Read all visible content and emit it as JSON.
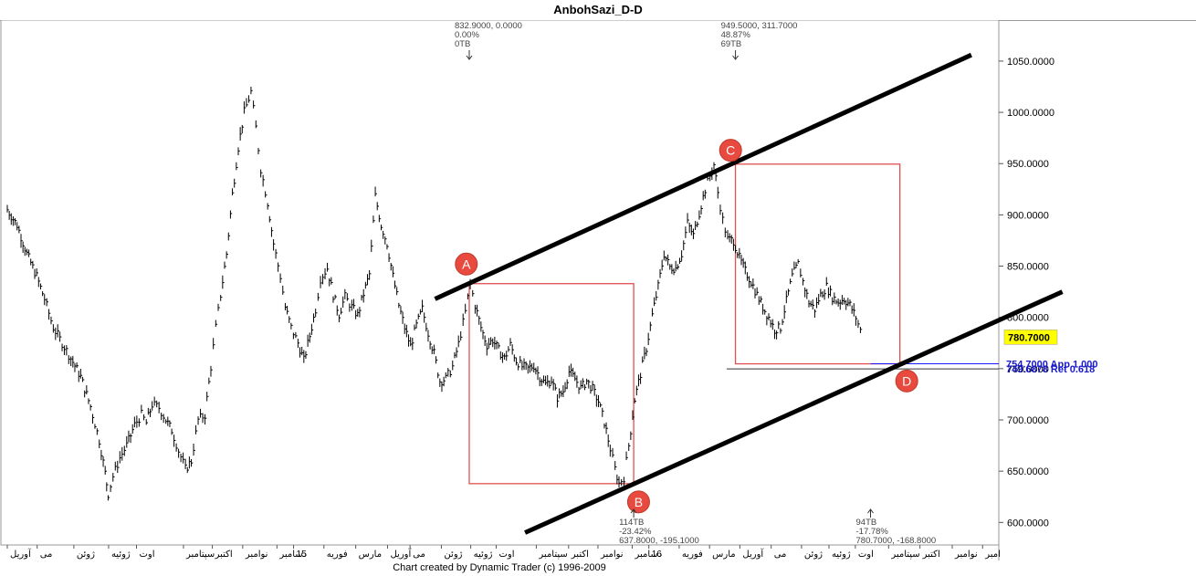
{
  "window": {
    "title": "AnbohSazi_D-D"
  },
  "footer": {
    "credit": "Chart created by Dynamic Trader  (c)  1996-2009"
  },
  "chart_data": {
    "type": "line",
    "style": "ohlc-bars",
    "title": "AnbohSazi_D-D",
    "ylim": [
      578,
      1090
    ],
    "y_ticks": [
      "1050.0000",
      "1000.0000",
      "950.0000",
      "900.0000",
      "850.0000",
      "800.0000",
      "750.0000",
      "700.0000",
      "650.0000",
      "600.0000"
    ],
    "y_tick_values": [
      1050,
      1000,
      950,
      900,
      850,
      800,
      750,
      700,
      650,
      600
    ],
    "last_price": "780.7000",
    "last_price_value": 780.7,
    "x_labels": [
      "آوریل",
      "می",
      "ژوئن",
      "ژوئیه",
      "اوت",
      "سپتامبر",
      "اکتبر",
      "نوامبر",
      "دسامبر",
      "15",
      "فوریه",
      "مارس",
      "آوریل",
      "می",
      "ژوئن",
      "ژوئیه",
      "اوت",
      "سپتامبر",
      "اکتبر",
      "نوامبر",
      "دسامبر",
      "16",
      "فوریه",
      "مارس",
      "آوریل",
      "می",
      "ژوئن",
      "ژوئیه",
      "اوت",
      "سپتامبر",
      "اکتبر",
      "نوامبر",
      "امبر"
    ],
    "x_label_pos": [
      0,
      0.0305,
      0.068,
      0.1035,
      0.132,
      0.18,
      0.2095,
      0.2405,
      0.2755,
      0.2925,
      0.3235,
      0.356,
      0.3885,
      0.4115,
      0.4435,
      0.4735,
      0.4995,
      0.5405,
      0.5735,
      0.6035,
      0.6385,
      0.6555,
      0.6865,
      0.7175,
      0.7485,
      0.7805,
      0.8115,
      0.8395,
      0.8665,
      0.9005,
      0.9325,
      0.9655,
      0.9965
    ],
    "price_path": [
      [
        0,
        905
      ],
      [
        0.01,
        890
      ],
      [
        0.02,
        862
      ],
      [
        0.03,
        840
      ],
      [
        0.038,
        818
      ],
      [
        0.047,
        790
      ],
      [
        0.056,
        775
      ],
      [
        0.065,
        760
      ],
      [
        0.075,
        742
      ],
      [
        0.085,
        713
      ],
      [
        0.094,
        680
      ],
      [
        0.1,
        648
      ],
      [
        0.103,
        628
      ],
      [
        0.108,
        645
      ],
      [
        0.115,
        663
      ],
      [
        0.122,
        675
      ],
      [
        0.13,
        695
      ],
      [
        0.137,
        705
      ],
      [
        0.142,
        697
      ],
      [
        0.148,
        715
      ],
      [
        0.155,
        712
      ],
      [
        0.162,
        700
      ],
      [
        0.168,
        690
      ],
      [
        0.175,
        670
      ],
      [
        0.182,
        652
      ],
      [
        0.188,
        660
      ],
      [
        0.195,
        700
      ],
      [
        0.202,
        705
      ],
      [
        0.208,
        752
      ],
      [
        0.213,
        790
      ],
      [
        0.218,
        822
      ],
      [
        0.224,
        862
      ],
      [
        0.23,
        920
      ],
      [
        0.236,
        966
      ],
      [
        0.242,
        1000
      ],
      [
        0.249,
        1020
      ],
      [
        0.254,
        985
      ],
      [
        0.259,
        945
      ],
      [
        0.266,
        912
      ],
      [
        0.272,
        872
      ],
      [
        0.279,
        840
      ],
      [
        0.284,
        810
      ],
      [
        0.29,
        790
      ],
      [
        0.297,
        775
      ],
      [
        0.303,
        758
      ],
      [
        0.309,
        782
      ],
      [
        0.315,
        808
      ],
      [
        0.32,
        838
      ],
      [
        0.327,
        848
      ],
      [
        0.333,
        822
      ],
      [
        0.339,
        803
      ],
      [
        0.345,
        820
      ],
      [
        0.352,
        810
      ],
      [
        0.358,
        802
      ],
      [
        0.364,
        823
      ],
      [
        0.37,
        842
      ],
      [
        0.376,
        918
      ],
      [
        0.382,
        890
      ],
      [
        0.388,
        872
      ],
      [
        0.394,
        840
      ],
      [
        0.4,
        812
      ],
      [
        0.406,
        790
      ],
      [
        0.412,
        772
      ],
      [
        0.418,
        792
      ],
      [
        0.424,
        808
      ],
      [
        0.43,
        785
      ],
      [
        0.436,
        765
      ],
      [
        0.442,
        738
      ],
      [
        0.448,
        740
      ],
      [
        0.455,
        752
      ],
      [
        0.461,
        774
      ],
      [
        0.468,
        805
      ],
      [
        0.473,
        833
      ],
      [
        0.478,
        812
      ],
      [
        0.484,
        790
      ],
      [
        0.49,
        773
      ],
      [
        0.496,
        778
      ],
      [
        0.502,
        768
      ],
      [
        0.508,
        760
      ],
      [
        0.514,
        773
      ],
      [
        0.52,
        758
      ],
      [
        0.526,
        752
      ],
      [
        0.532,
        750
      ],
      [
        0.538,
        753
      ],
      [
        0.544,
        742
      ],
      [
        0.55,
        735
      ],
      [
        0.556,
        739
      ],
      [
        0.562,
        722
      ],
      [
        0.568,
        728
      ],
      [
        0.574,
        747
      ],
      [
        0.58,
        740
      ],
      [
        0.586,
        731
      ],
      [
        0.592,
        738
      ],
      [
        0.598,
        730
      ],
      [
        0.604,
        718
      ],
      [
        0.61,
        698
      ],
      [
        0.616,
        672
      ],
      [
        0.621,
        652
      ],
      [
        0.625,
        638
      ],
      [
        0.63,
        644
      ],
      [
        0.635,
        675
      ],
      [
        0.641,
        720
      ],
      [
        0.647,
        745
      ],
      [
        0.653,
        770
      ],
      [
        0.659,
        802
      ],
      [
        0.665,
        830
      ],
      [
        0.671,
        862
      ],
      [
        0.677,
        849
      ],
      [
        0.683,
        848
      ],
      [
        0.689,
        862
      ],
      [
        0.695,
        892
      ],
      [
        0.701,
        880
      ],
      [
        0.707,
        902
      ],
      [
        0.713,
        925
      ],
      [
        0.718,
        938
      ],
      [
        0.722,
        949
      ],
      [
        0.726,
        922
      ],
      [
        0.731,
        895
      ],
      [
        0.736,
        876
      ],
      [
        0.742,
        875
      ],
      [
        0.748,
        858
      ],
      [
        0.754,
        845
      ],
      [
        0.76,
        835
      ],
      [
        0.766,
        822
      ],
      [
        0.772,
        810
      ],
      [
        0.778,
        800
      ],
      [
        0.784,
        788
      ],
      [
        0.79,
        790
      ],
      [
        0.796,
        816
      ],
      [
        0.802,
        840
      ],
      [
        0.808,
        852
      ],
      [
        0.813,
        835
      ],
      [
        0.819,
        815
      ],
      [
        0.825,
        808
      ],
      [
        0.831,
        822
      ],
      [
        0.837,
        830
      ],
      [
        0.843,
        820
      ],
      [
        0.849,
        815
      ],
      [
        0.855,
        818
      ],
      [
        0.861,
        812
      ],
      [
        0.867,
        800
      ],
      [
        0.874,
        781
      ]
    ],
    "trendlines": [
      {
        "from": [
          0.437,
          818
        ],
        "to": [
          0.985,
          1056
        ]
      },
      {
        "from": [
          0.529,
          590
        ],
        "to": [
          1.078,
          825
        ]
      }
    ],
    "boxes": [
      {
        "x0": 0.472,
        "x1": 0.64,
        "y0": 637.8,
        "y1": 832.9
      },
      {
        "x0": 0.744,
        "x1": 0.912,
        "y0": 754.7,
        "y1": 949.5
      }
    ],
    "points": [
      {
        "label": "A",
        "x": 0.469,
        "y": 852
      },
      {
        "label": "B",
        "x": 0.645,
        "y": 620
      },
      {
        "label": "C",
        "x": 0.739,
        "y": 963
      },
      {
        "label": "D",
        "x": 0.919,
        "y": 738
      }
    ],
    "annotations": [
      {
        "lines": [
          "832.9000, 0.0000",
          "0.00%",
          "0TB"
        ],
        "x": 0.472,
        "y": 1090,
        "arrow": "down"
      },
      {
        "lines": [
          "949.5000, 311.7000",
          "48.87%",
          "69TB"
        ],
        "x": 0.744,
        "y": 1090,
        "arrow": "down"
      },
      {
        "lines": [
          "114TB",
          "-23.42%",
          "637.8000, -195.1000"
        ],
        "x": 0.64,
        "y": 606,
        "arrow": "up"
      },
      {
        "lines": [
          "94TB",
          "-17.78%",
          "780.7000, -168.8000"
        ],
        "x": 0.882,
        "y": 606,
        "arrow": "up"
      }
    ],
    "levels": [
      {
        "label": "754.7000 App 1.000",
        "value": 754.7,
        "x0": 0.882,
        "x1": 1.0
      },
      {
        "label": "749.6878 Ret 0.618",
        "value": 749.6878,
        "x0": 0.735,
        "x1": 1.0
      }
    ]
  }
}
